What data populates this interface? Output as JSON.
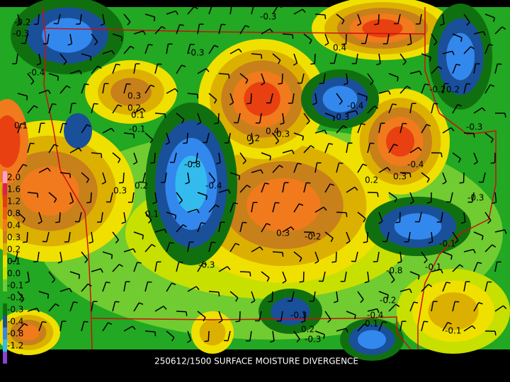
{
  "title": "250612/1500 SURFACE MOISTURE DIVERGENCE",
  "legend": {
    "items": [
      {
        "label": "2.0",
        "color": "#ff9fd0"
      },
      {
        "label": "1.6",
        "color": "#e0204a"
      },
      {
        "label": "1.2",
        "color": "#e83c10"
      },
      {
        "label": "0.8",
        "color": "#f05a14"
      },
      {
        "label": "0.4",
        "color": "#f07a1c"
      },
      {
        "label": "0.3",
        "color": "#c8801a"
      },
      {
        "label": "0.2",
        "color": "#dcb000"
      },
      {
        "label": "0.1",
        "color": "#f0e000"
      },
      {
        "label": "0.0",
        "color": "#c8e000"
      },
      {
        "label": "-0.1",
        "color": "#70cc30"
      },
      {
        "label": "-0.2",
        "color": "#22a822"
      },
      {
        "label": "-0.3",
        "color": "#107010"
      },
      {
        "label": "-0.4",
        "color": "#1a4f9a"
      },
      {
        "label": "-0.8",
        "color": "#3388ee"
      },
      {
        "label": "-1.2",
        "color": "#33bbee"
      },
      {
        "label": "-1.6",
        "color": "#8844cc"
      }
    ]
  },
  "contour_labels": [
    "-0.2",
    "-0.3",
    "-0.3",
    "-0.3",
    "-0.4",
    "0.3",
    "0.2",
    "0.1",
    "-0.1",
    "0.1",
    "-0.8",
    "-0.4",
    "0.3",
    "0.2",
    "0.1",
    "0.3",
    "-0.3",
    "-0.2",
    "0.4",
    "0.3",
    "0.2",
    "-0.3",
    "-0.4",
    "-0.4",
    "0.3",
    "0.2",
    "-0.3",
    "-0.1",
    "-0.1",
    "-0.8",
    "-0.3",
    "-0.4",
    "0.1",
    "0.2",
    "-0.3",
    "-0.1",
    "-0.2",
    "0.4",
    "-0.2",
    "0.2",
    "-0.3"
  ]
}
